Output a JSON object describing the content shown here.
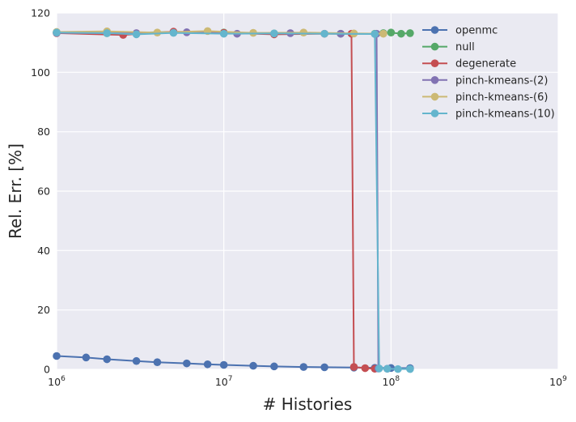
{
  "chart_data": {
    "type": "line",
    "xlabel": "# Histories",
    "ylabel": "Rel. Err. [%]",
    "xscale": "log",
    "xlim": [
      1000000,
      1000000000
    ],
    "ylim": [
      0,
      120
    ],
    "x_ticks": [
      {
        "base": "10",
        "exp": "6",
        "value": 1000000
      },
      {
        "base": "10",
        "exp": "7",
        "value": 10000000
      },
      {
        "base": "10",
        "exp": "8",
        "value": 100000000
      },
      {
        "base": "10",
        "exp": "9",
        "value": 1000000000
      }
    ],
    "y_ticks": [
      {
        "label": "0",
        "value": 0
      },
      {
        "label": "20",
        "value": 20
      },
      {
        "label": "40",
        "value": 40
      },
      {
        "label": "60",
        "value": 60
      },
      {
        "label": "80",
        "value": 80
      },
      {
        "label": "100",
        "value": 100
      },
      {
        "label": "120",
        "value": 120
      }
    ],
    "grid": true,
    "legend_position": "top-right",
    "series": [
      {
        "name": "openmc",
        "color": "#4c72b0",
        "x": [
          1000000,
          1500000,
          2000000,
          3000000,
          4000000,
          6000000,
          8000000,
          10000000,
          15000000,
          20000000,
          30000000,
          40000000,
          60000000,
          80000000,
          100000000,
          130000000
        ],
        "y": [
          4.5,
          4.0,
          3.4,
          2.8,
          2.4,
          2.0,
          1.7,
          1.5,
          1.2,
          1.0,
          0.8,
          0.7,
          0.6,
          0.5,
          0.45,
          0.4
        ]
      },
      {
        "name": "null",
        "color": "#55a868",
        "x": [
          1000000,
          2000000,
          5000000,
          10000000,
          20000000,
          50000000,
          80000000,
          90000000,
          100000000,
          115000000,
          130000000
        ],
        "y": [
          113.5,
          113.2,
          113.6,
          113.4,
          113.1,
          113.0,
          113.0,
          113.2,
          113.4,
          113.0,
          113.2
        ]
      },
      {
        "name": "degenerate",
        "color": "#c44e52",
        "x": [
          1000000,
          2500000,
          5000000,
          10000000,
          20000000,
          40000000,
          58000000,
          60000000,
          70000000,
          80000000
        ],
        "y": [
          113.2,
          112.6,
          113.7,
          113.3,
          112.8,
          113.0,
          113.0,
          0.8,
          0.4,
          0.2
        ]
      },
      {
        "name": "pinch-kmeans-(2)",
        "color": "#8172b2",
        "x": [
          1000000,
          3000000,
          6000000,
          12000000,
          25000000,
          50000000,
          82000000,
          84000000,
          95000000
        ],
        "y": [
          113.3,
          113.2,
          113.5,
          113.0,
          113.2,
          113.0,
          113.0,
          0.3,
          0.2
        ]
      },
      {
        "name": "pinch-kmeans-(6)",
        "color": "#ccb974",
        "x": [
          1000000,
          2000000,
          4000000,
          8000000,
          15000000,
          30000000,
          60000000,
          90000000
        ],
        "y": [
          113.6,
          113.8,
          113.4,
          113.9,
          113.3,
          113.4,
          113.1,
          113.0
        ]
      },
      {
        "name": "pinch-kmeans-(10)",
        "color": "#64b5cd",
        "x": [
          1000000,
          2000000,
          3000000,
          5000000,
          10000000,
          20000000,
          40000000,
          80000000,
          85000000,
          95000000,
          110000000,
          130000000
        ],
        "y": [
          113.4,
          113.2,
          112.8,
          113.3,
          113.0,
          113.1,
          113.0,
          112.9,
          0.3,
          0.2,
          0.1,
          0.1
        ]
      }
    ]
  }
}
